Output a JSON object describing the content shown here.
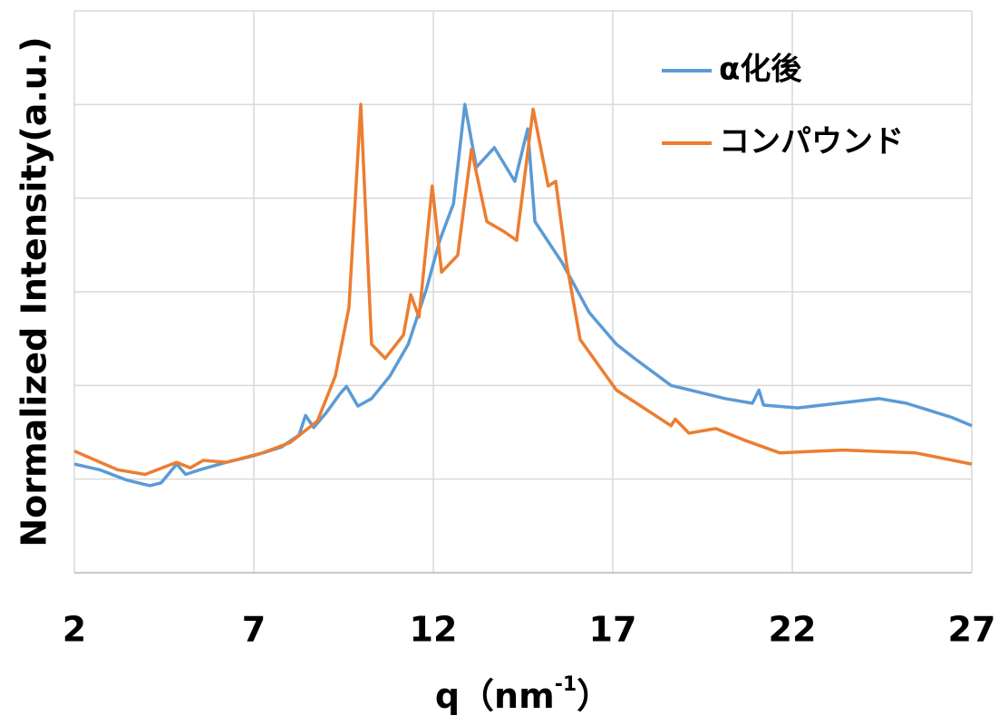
{
  "chart_data": {
    "type": "line",
    "xlabel": "q（nm",
    "xlabel_sup": "-1",
    "xlabel_end": "）",
    "ylabel": "Normalized Intensity(a.u.)",
    "xlim": [
      2,
      27
    ],
    "xticks": [
      2,
      7,
      12,
      17,
      22,
      27
    ],
    "ylim": [
      0,
      6
    ],
    "yticks": [
      0,
      1,
      2,
      3,
      4,
      5,
      6
    ],
    "grid": true,
    "legend": "upper right",
    "series": [
      {
        "name": "α化後",
        "color": "#5b9bd5",
        "x": [
          2,
          2.7,
          3.46,
          4.1,
          4.42,
          4.85,
          5.1,
          5.5,
          6.24,
          7,
          7.76,
          8.26,
          8.44,
          8.67,
          9.02,
          9.4,
          9.58,
          9.9,
          10.28,
          10.79,
          11.3,
          11.8,
          12.18,
          12.56,
          12.88,
          13.2,
          13.7,
          14.27,
          14.63,
          14.83,
          15.59,
          16.34,
          17.1,
          17.6,
          18.62,
          20.13,
          20.89,
          21.07,
          21.2,
          22.15,
          24.42,
          25.18,
          26.44,
          27
        ],
        "values": [
          1.16,
          1.1,
          0.99,
          0.93,
          0.96,
          1.16,
          1.05,
          1.1,
          1.18,
          1.25,
          1.34,
          1.47,
          1.68,
          1.55,
          1.71,
          1.91,
          1.99,
          1.78,
          1.86,
          2.1,
          2.44,
          3.02,
          3.55,
          3.94,
          5.0,
          4.33,
          4.54,
          4.18,
          4.74,
          3.75,
          3.31,
          2.78,
          2.44,
          2.29,
          2.0,
          1.86,
          1.81,
          1.95,
          1.79,
          1.76,
          1.86,
          1.81,
          1.66,
          1.57
        ]
      },
      {
        "name": "コンパウンド",
        "color": "#ed7d31",
        "x": [
          2,
          3.2,
          3.97,
          4.85,
          5.23,
          5.59,
          6.24,
          7.25,
          8.01,
          8.77,
          9.27,
          9.65,
          9.98,
          10.28,
          10.66,
          11.17,
          11.37,
          11.6,
          11.97,
          12.23,
          12.68,
          13.06,
          13.49,
          13.94,
          14.32,
          14.78,
          15.2,
          15.41,
          15.71,
          16.09,
          17.1,
          17.86,
          18.62,
          18.74,
          19.12,
          19.87,
          20.64,
          21.65,
          23.42,
          25.43,
          27
        ],
        "values": [
          1.3,
          1.1,
          1.05,
          1.18,
          1.12,
          1.2,
          1.18,
          1.28,
          1.39,
          1.62,
          2.1,
          2.83,
          5.0,
          2.44,
          2.29,
          2.54,
          2.97,
          2.73,
          4.13,
          3.21,
          3.39,
          4.52,
          3.75,
          3.65,
          3.55,
          4.95,
          4.13,
          4.18,
          3.31,
          2.49,
          1.95,
          1.76,
          1.57,
          1.64,
          1.49,
          1.54,
          1.42,
          1.28,
          1.31,
          1.28,
          1.16
        ]
      }
    ]
  }
}
